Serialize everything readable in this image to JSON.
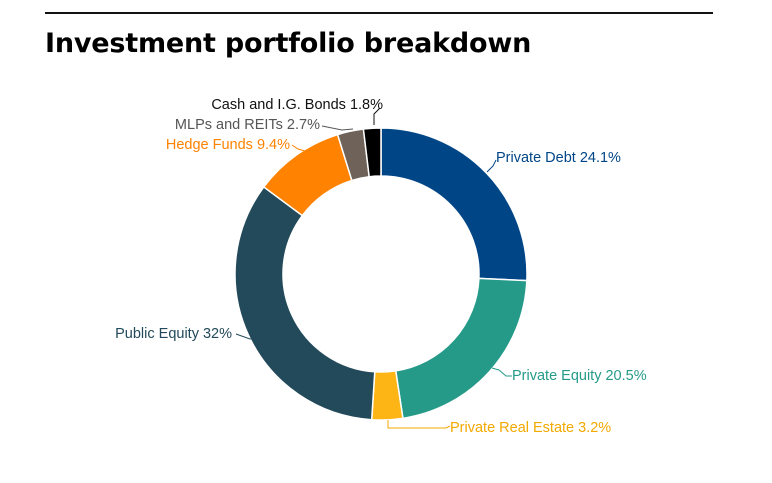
{
  "title": "Investment portfolio breakdown",
  "chart_data": {
    "type": "pie",
    "title": "Investment portfolio breakdown",
    "donut": true,
    "start_angle_deg": 0,
    "direction": "clockwise",
    "slices": [
      {
        "name": "Private Debt",
        "value": 24.1,
        "label": "Private Debt 24.1%",
        "color": "#004687",
        "label_color": "#004687"
      },
      {
        "name": "Private Equity",
        "value": 20.5,
        "label": "Private Equity 20.5%",
        "color": "#259A89",
        "label_color": "#259A89"
      },
      {
        "name": "Private Real Estate",
        "value": 3.2,
        "label": "Private Real Estate 3.2%",
        "color": "#FDB515",
        "label_color": "#F2A900"
      },
      {
        "name": "Public Equity",
        "value": 32,
        "label": "Public Equity 32%",
        "color": "#234A5A",
        "label_color": "#234A5A"
      },
      {
        "name": "Hedge Funds",
        "value": 9.4,
        "label": "Hedge Funds 9.4%",
        "color": "#FF8200",
        "label_color": "#FF8200"
      },
      {
        "name": "MLPs and REITs",
        "value": 2.7,
        "label": "MLPs and REITs 2.7%",
        "color": "#6E6259",
        "label_color": "#555555"
      },
      {
        "name": "Cash and I.G. Bonds",
        "value": 1.8,
        "label": "Cash and I.G. Bonds 1.8%",
        "color": "#000000",
        "label_color": "#111111"
      }
    ]
  }
}
